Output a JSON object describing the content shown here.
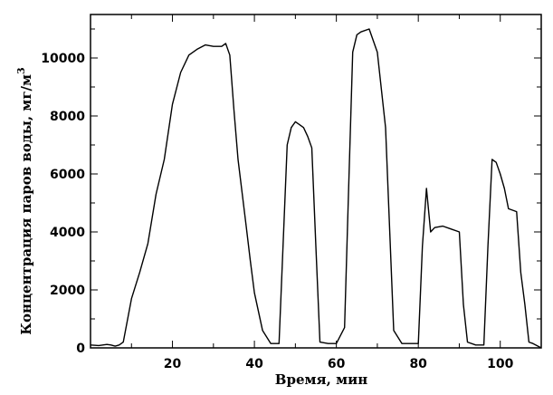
{
  "chart_data": {
    "type": "line",
    "xlabel": "Время, мин",
    "ylabel": "Концентрация паров воды, мг/м",
    "ylabel_superscript": "3",
    "xlim": [
      0,
      110
    ],
    "ylim": [
      0,
      11500
    ],
    "xticks": [
      20,
      40,
      60,
      80,
      100
    ],
    "xtick_labels": [
      "20",
      "40",
      "60",
      "80",
      "100"
    ],
    "yticks": [
      0,
      2000,
      4000,
      6000,
      8000,
      10000
    ],
    "ytick_labels": [
      "0",
      "2000",
      "4000",
      "6000",
      "8000",
      "10000"
    ],
    "grid": false,
    "line_color": "#000000",
    "series": [
      {
        "x": [
          0,
          2,
          4,
          5,
          6,
          7,
          8,
          10,
          12,
          14,
          16,
          18,
          20,
          22,
          24,
          26,
          28,
          30,
          32,
          33,
          34,
          35,
          36,
          38,
          39,
          40,
          42,
          44,
          46,
          48,
          49,
          50,
          51,
          52,
          53,
          54,
          55,
          56,
          58,
          60,
          62,
          63,
          64,
          65,
          66,
          68,
          70,
          72,
          74,
          76,
          78,
          80,
          81,
          82,
          83,
          84,
          86,
          88,
          90,
          91,
          92,
          94,
          96,
          97,
          98,
          99,
          100,
          101,
          102,
          104,
          105,
          106,
          107,
          108,
          110
        ],
        "y": [
          100,
          80,
          120,
          100,
          60,
          100,
          200,
          1700,
          2600,
          3600,
          5300,
          6500,
          8400,
          9500,
          10100,
          10300,
          10450,
          10400,
          10400,
          10500,
          10100,
          8200,
          6500,
          4200,
          3000,
          1900,
          600,
          150,
          150,
          7000,
          7600,
          7800,
          7700,
          7600,
          7300,
          6900,
          3500,
          200,
          150,
          150,
          700,
          5500,
          10200,
          10800,
          10900,
          11000,
          10200,
          7600,
          600,
          150,
          150,
          150,
          3500,
          5500,
          4000,
          4150,
          4200,
          4100,
          4000,
          1500,
          200,
          100,
          100,
          3500,
          6500,
          6400,
          6000,
          5500,
          4800,
          4700,
          2600,
          1500,
          200,
          150,
          0
        ]
      }
    ]
  }
}
